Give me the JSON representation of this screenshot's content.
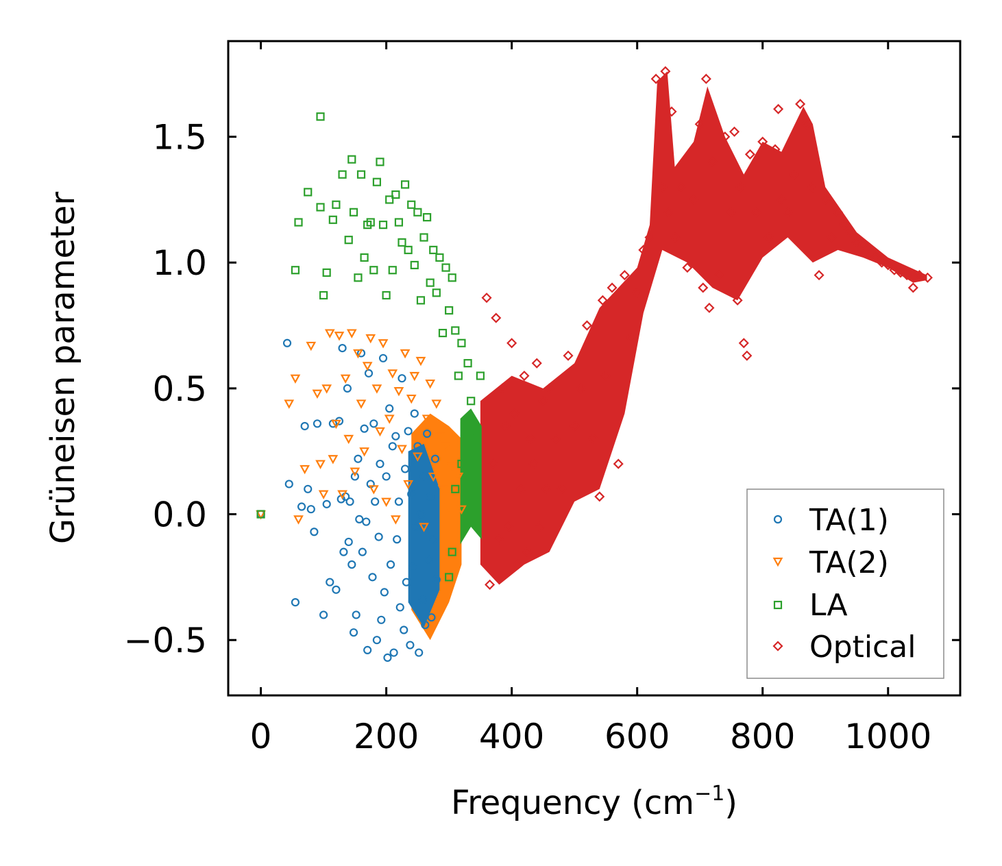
{
  "chart_data": {
    "type": "scatter",
    "title": "",
    "xlabel": "Frequency (cm",
    "xlabel_sup": "−1",
    "xlabel_suffix": ")",
    "ylabel": "Grüneisen parameter",
    "xlim": [
      -52,
      1115
    ],
    "ylim": [
      -0.72,
      1.88
    ],
    "xticks": [
      0,
      200,
      400,
      600,
      800,
      1000
    ],
    "xtick_labels": [
      "0",
      "200",
      "400",
      "600",
      "800",
      "1000"
    ],
    "yticks": [
      -0.5,
      0.0,
      0.5,
      1.0,
      1.5
    ],
    "ytick_labels": [
      "−0.5",
      "0.0",
      "0.5",
      "1.0",
      "1.5"
    ],
    "grid": false,
    "legend_position": "bottom-right",
    "series": [
      {
        "name": "TA(1)",
        "marker": "circle",
        "color": "#1f77b4",
        "points": [
          [
            0,
            0.0
          ],
          [
            42,
            0.68
          ],
          [
            45,
            0.12
          ],
          [
            55,
            -0.35
          ],
          [
            65,
            0.03
          ],
          [
            70,
            0.35
          ],
          [
            75,
            0.1
          ],
          [
            80,
            0.02
          ],
          [
            85,
            -0.07
          ],
          [
            90,
            0.36
          ],
          [
            100,
            -0.4
          ],
          [
            105,
            0.04
          ],
          [
            110,
            -0.27
          ],
          [
            115,
            0.36
          ],
          [
            120,
            -0.3
          ],
          [
            125,
            0.37
          ],
          [
            128,
            0.06
          ],
          [
            130,
            0.66
          ],
          [
            132,
            -0.15
          ],
          [
            135,
            0.07
          ],
          [
            138,
            0.5
          ],
          [
            140,
            -0.11
          ],
          [
            142,
            0.05
          ],
          [
            145,
            -0.2
          ],
          [
            148,
            -0.47
          ],
          [
            150,
            0.15
          ],
          [
            152,
            -0.4
          ],
          [
            155,
            0.22
          ],
          [
            157,
            -0.02
          ],
          [
            160,
            0.64
          ],
          [
            162,
            -0.15
          ],
          [
            165,
            0.34
          ],
          [
            168,
            -0.03
          ],
          [
            170,
            -0.54
          ],
          [
            172,
            0.56
          ],
          [
            175,
            0.12
          ],
          [
            178,
            -0.25
          ],
          [
            180,
            0.36
          ],
          [
            182,
            0.05
          ],
          [
            185,
            -0.5
          ],
          [
            188,
            -0.09
          ],
          [
            190,
            0.2
          ],
          [
            192,
            -0.42
          ],
          [
            195,
            0.62
          ],
          [
            197,
            -0.31
          ],
          [
            200,
            0.15
          ],
          [
            202,
            -0.57
          ],
          [
            205,
            0.42
          ],
          [
            207,
            -0.2
          ],
          [
            210,
            0.27
          ],
          [
            212,
            -0.55
          ],
          [
            215,
            0.31
          ],
          [
            217,
            -0.1
          ],
          [
            220,
            0.05
          ],
          [
            222,
            -0.37
          ],
          [
            225,
            0.54
          ],
          [
            228,
            -0.46
          ],
          [
            230,
            0.18
          ],
          [
            232,
            -0.27
          ],
          [
            235,
            0.33
          ],
          [
            238,
            -0.52
          ],
          [
            240,
            0.08
          ],
          [
            242,
            -0.21
          ],
          [
            245,
            0.4
          ],
          [
            247,
            -0.05
          ],
          [
            250,
            0.27
          ],
          [
            252,
            -0.55
          ],
          [
            255,
            0.0
          ],
          [
            258,
            -0.34
          ],
          [
            260,
            0.15
          ],
          [
            262,
            -0.44
          ],
          [
            265,
            0.32
          ],
          [
            268,
            -0.18
          ],
          [
            270,
            0.07
          ],
          [
            272,
            -0.41
          ],
          [
            275,
            -0.1
          ],
          [
            278,
            0.22
          ],
          [
            280,
            -0.26
          ]
        ]
      },
      {
        "name": "TA(2)",
        "marker": "triangle_down",
        "color": "#ff7f0e",
        "points": [
          [
            0,
            0.0
          ],
          [
            45,
            0.44
          ],
          [
            55,
            0.54
          ],
          [
            60,
            -0.02
          ],
          [
            70,
            0.18
          ],
          [
            80,
            0.67
          ],
          [
            90,
            0.48
          ],
          [
            95,
            0.2
          ],
          [
            100,
            0.08
          ],
          [
            105,
            0.5
          ],
          [
            110,
            0.72
          ],
          [
            115,
            0.22
          ],
          [
            120,
            0.36
          ],
          [
            125,
            0.71
          ],
          [
            130,
            0.08
          ],
          [
            135,
            0.54
          ],
          [
            140,
            0.3
          ],
          [
            145,
            0.72
          ],
          [
            150,
            0.17
          ],
          [
            155,
            0.64
          ],
          [
            160,
            0.44
          ],
          [
            165,
            0.25
          ],
          [
            170,
            0.59
          ],
          [
            175,
            0.7
          ],
          [
            180,
            0.1
          ],
          [
            185,
            0.5
          ],
          [
            190,
            0.33
          ],
          [
            195,
            0.68
          ],
          [
            200,
            0.05
          ],
          [
            205,
            0.38
          ],
          [
            210,
            0.56
          ],
          [
            215,
            -0.02
          ],
          [
            220,
            0.49
          ],
          [
            225,
            0.26
          ],
          [
            230,
            0.64
          ],
          [
            235,
            0.12
          ],
          [
            240,
            0.46
          ],
          [
            245,
            0.55
          ],
          [
            250,
            0.23
          ],
          [
            255,
            0.61
          ],
          [
            260,
            -0.05
          ],
          [
            265,
            0.38
          ],
          [
            270,
            0.52
          ],
          [
            275,
            0.15
          ],
          [
            280,
            0.44
          ],
          [
            285,
            0.31
          ],
          [
            290,
            0.1
          ],
          [
            295,
            0.27
          ],
          [
            300,
            0.03
          ],
          [
            305,
            0.19
          ],
          [
            310,
            0.09
          ],
          [
            315,
            0.15
          ],
          [
            320,
            0.02
          ]
        ]
      },
      {
        "name": "LA",
        "marker": "square",
        "color": "#2ca02c",
        "points": [
          [
            0,
            0.0
          ],
          [
            55,
            0.97
          ],
          [
            60,
            1.16
          ],
          [
            75,
            1.28
          ],
          [
            95,
            1.58
          ],
          [
            95,
            1.22
          ],
          [
            100,
            0.87
          ],
          [
            105,
            0.96
          ],
          [
            115,
            1.17
          ],
          [
            120,
            1.23
          ],
          [
            130,
            1.35
          ],
          [
            140,
            1.09
          ],
          [
            145,
            1.41
          ],
          [
            148,
            1.2
          ],
          [
            155,
            0.94
          ],
          [
            160,
            1.35
          ],
          [
            165,
            1.02
          ],
          [
            170,
            1.15
          ],
          [
            175,
            1.16
          ],
          [
            180,
            0.97
          ],
          [
            185,
            1.32
          ],
          [
            190,
            1.4
          ],
          [
            195,
            1.15
          ],
          [
            200,
            0.87
          ],
          [
            205,
            1.25
          ],
          [
            210,
            0.97
          ],
          [
            215,
            1.27
          ],
          [
            220,
            1.16
          ],
          [
            225,
            1.08
          ],
          [
            230,
            1.31
          ],
          [
            235,
            1.05
          ],
          [
            240,
            1.23
          ],
          [
            245,
            0.99
          ],
          [
            250,
            1.2
          ],
          [
            255,
            0.85
          ],
          [
            260,
            1.1
          ],
          [
            265,
            1.18
          ],
          [
            270,
            0.92
          ],
          [
            275,
            1.05
          ],
          [
            280,
            0.88
          ],
          [
            285,
            1.02
          ],
          [
            290,
            0.72
          ],
          [
            295,
            0.98
          ],
          [
            300,
            0.81
          ],
          [
            305,
            0.94
          ],
          [
            310,
            0.73
          ],
          [
            315,
            0.55
          ],
          [
            320,
            0.68
          ],
          [
            325,
            0.35
          ],
          [
            330,
            0.6
          ],
          [
            335,
            0.45
          ],
          [
            340,
            0.25
          ],
          [
            345,
            0.3
          ],
          [
            350,
            0.55
          ],
          [
            300,
            -0.25
          ],
          [
            305,
            -0.15
          ],
          [
            310,
            0.1
          ],
          [
            320,
            0.2
          ]
        ]
      },
      {
        "name": "Optical",
        "marker": "diamond",
        "color": "#d62728",
        "points": [
          [
            360,
            0.86
          ],
          [
            365,
            -0.28
          ],
          [
            370,
            0.2
          ],
          [
            375,
            0.78
          ],
          [
            380,
            -0.1
          ],
          [
            385,
            0.5
          ],
          [
            390,
            0.35
          ],
          [
            395,
            -0.05
          ],
          [
            400,
            0.68
          ],
          [
            405,
            0.4
          ],
          [
            410,
            -0.2
          ],
          [
            415,
            0.1
          ],
          [
            420,
            0.55
          ],
          [
            425,
            -0.15
          ],
          [
            430,
            0.3
          ],
          [
            435,
            0.2
          ],
          [
            440,
            0.6
          ],
          [
            445,
            -0.05
          ],
          [
            450,
            0.45
          ],
          [
            455,
            0.1
          ],
          [
            460,
            0.5
          ],
          [
            470,
            0.3
          ],
          [
            480,
            0.1
          ],
          [
            490,
            0.63
          ],
          [
            500,
            0.35
          ],
          [
            510,
            0.5
          ],
          [
            520,
            0.75
          ],
          [
            530,
            0.3
          ],
          [
            540,
            0.07
          ],
          [
            545,
            0.85
          ],
          [
            550,
            0.55
          ],
          [
            560,
            0.9
          ],
          [
            570,
            0.2
          ],
          [
            580,
            0.95
          ],
          [
            590,
            0.7
          ],
          [
            600,
            0.88
          ],
          [
            610,
            1.05
          ],
          [
            620,
            1.1
          ],
          [
            630,
            1.73
          ],
          [
            640,
            1.3
          ],
          [
            645,
            1.76
          ],
          [
            650,
            1.2
          ],
          [
            655,
            1.6
          ],
          [
            660,
            1.1
          ],
          [
            670,
            1.3
          ],
          [
            680,
            0.98
          ],
          [
            690,
            1.25
          ],
          [
            700,
            1.55
          ],
          [
            705,
            0.9
          ],
          [
            710,
            1.73
          ],
          [
            715,
            0.82
          ],
          [
            720,
            1.4
          ],
          [
            730,
            0.95
          ],
          [
            740,
            1.5
          ],
          [
            750,
            1.2
          ],
          [
            755,
            1.52
          ],
          [
            760,
            0.85
          ],
          [
            765,
            1.3
          ],
          [
            770,
            0.68
          ],
          [
            775,
            0.63
          ],
          [
            780,
            1.43
          ],
          [
            790,
            1.2
          ],
          [
            800,
            1.48
          ],
          [
            810,
            1.1
          ],
          [
            820,
            1.45
          ],
          [
            825,
            1.61
          ],
          [
            830,
            1.25
          ],
          [
            840,
            1.2
          ],
          [
            850,
            1.35
          ],
          [
            860,
            1.63
          ],
          [
            870,
            1.55
          ],
          [
            880,
            1.3
          ],
          [
            890,
            0.95
          ],
          [
            900,
            1.25
          ],
          [
            910,
            1.1
          ],
          [
            920,
            1.2
          ],
          [
            930,
            1.15
          ],
          [
            940,
            1.12
          ],
          [
            950,
            1.08
          ],
          [
            960,
            1.07
          ],
          [
            970,
            1.03
          ],
          [
            980,
            1.02
          ],
          [
            990,
            1.0
          ],
          [
            1000,
            0.99
          ],
          [
            1010,
            0.97
          ],
          [
            1020,
            0.96
          ],
          [
            1030,
            0.95
          ],
          [
            1040,
            0.9
          ],
          [
            1050,
            0.95
          ],
          [
            1063,
            0.94
          ]
        ]
      }
    ]
  },
  "legend": {
    "items": [
      {
        "label": "TA(1)",
        "color": "#1f77b4",
        "marker": "circle"
      },
      {
        "label": "TA(2)",
        "color": "#ff7f0e",
        "marker": "triangle_down"
      },
      {
        "label": "LA",
        "color": "#2ca02c",
        "marker": "square"
      },
      {
        "label": "Optical",
        "color": "#d62728",
        "marker": "diamond"
      }
    ]
  }
}
